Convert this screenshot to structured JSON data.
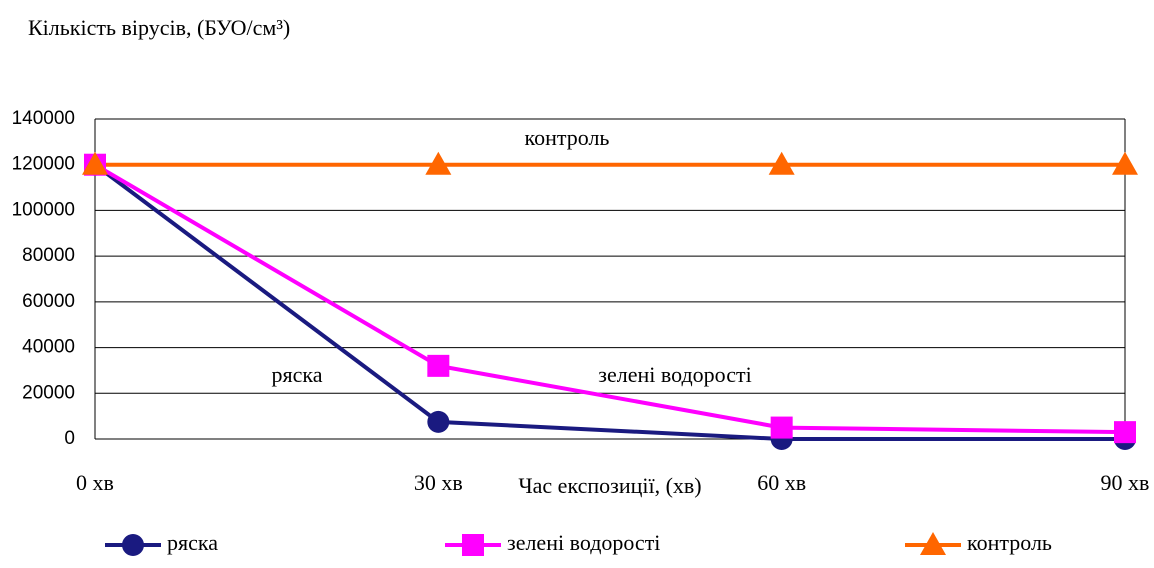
{
  "chart_data": {
    "type": "line",
    "title": "Кількість вірусів, (БУО/см³)",
    "x_label": "Час експозиції, (хв)",
    "categories": [
      "0 хв",
      "30 хв",
      "60 хв",
      "90 хв"
    ],
    "series": [
      {
        "name": "ряска",
        "color": "#1a1a80",
        "marker": "circle",
        "values": [
          120000,
          7500,
          0,
          0
        ]
      },
      {
        "name": "зелені водорості",
        "color": "#ff00ff",
        "marker": "square",
        "values": [
          120000,
          32000,
          5000,
          3000
        ]
      },
      {
        "name": "контроль",
        "color": "#ff6600",
        "marker": "triangle",
        "values": [
          120000,
          120000,
          120000,
          120000
        ]
      }
    ],
    "annotations": [
      "контроль",
      "ряска",
      "зелені водорості"
    ],
    "ylim": [
      0,
      140000
    ],
    "yticks": [
      0,
      20000,
      40000,
      60000,
      80000,
      100000,
      120000,
      140000
    ],
    "grid": true,
    "legend": "bottom"
  }
}
